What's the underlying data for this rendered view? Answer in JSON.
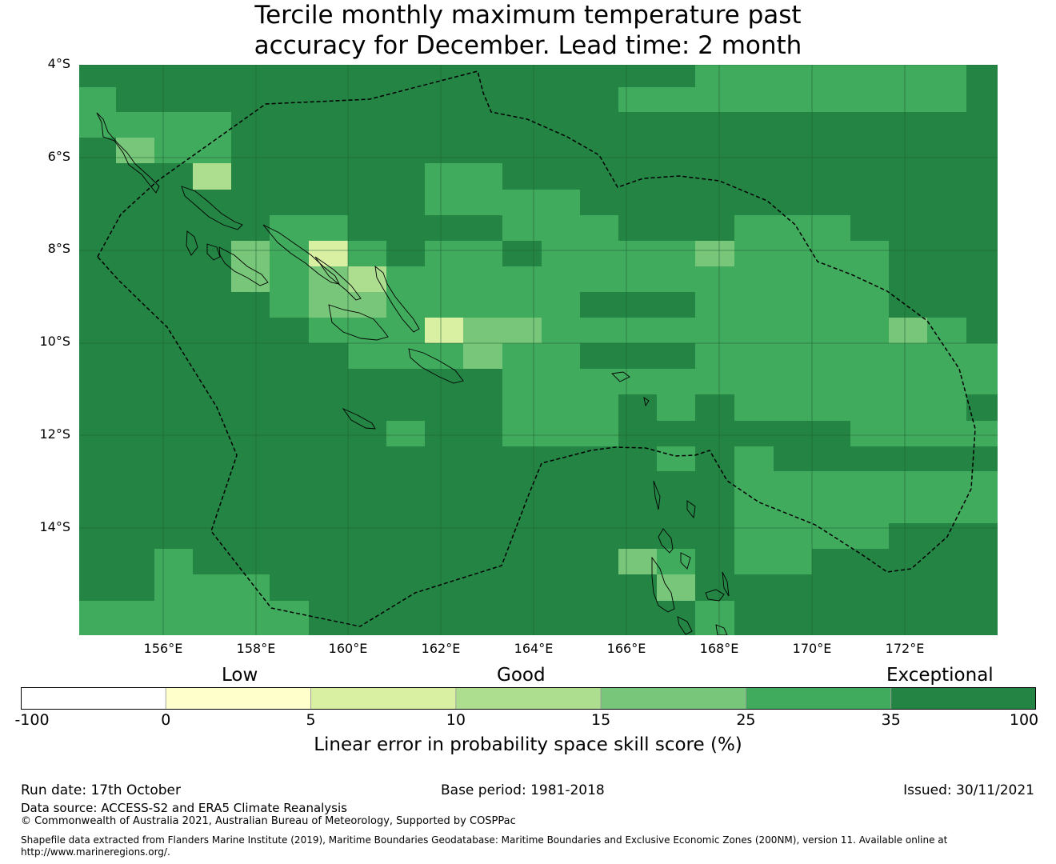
{
  "title_line1": "Tercile monthly maximum temperature past",
  "title_line2": "accuracy for December. Lead time: 2 month",
  "lat_labels": [
    "4°S",
    "6°S",
    "8°S",
    "10°S",
    "12°S",
    "14°S"
  ],
  "lon_labels": [
    "156°E",
    "158°E",
    "160°E",
    "162°E",
    "164°E",
    "166°E",
    "168°E",
    "170°E",
    "172°E"
  ],
  "categories": {
    "low": "Low",
    "good": "Good",
    "exceptional": "Exceptional"
  },
  "colorbar": {
    "ticks": [
      "-100",
      "0",
      "5",
      "10",
      "15",
      "25",
      "35",
      "100"
    ],
    "colors": [
      "#ffffff",
      "#ffffcc",
      "#d9f0a3",
      "#addd8e",
      "#78c679",
      "#41ab5d",
      "#238443"
    ],
    "label": "Linear error in probability space skill score (%)"
  },
  "footer": {
    "run_date": "Run date: 17th October",
    "base_period": "Base period: 1981-2018",
    "issued": "Issued: 30/11/2021",
    "data_source": "Data source: ACCESS-S2 and ERA5 Climate Reanalysis",
    "copyright": "© Commonwealth of Australia 2021, Australian Bureau of Meteorology, Supported by COSPPac",
    "shapefile_line1": "Shapefile data extracted from Flanders Marine Institute (2019), Maritime Boundaries Geodatabase: Maritime Boundaries and Exclusive Economic Zones (200NM), version 11. Available online at",
    "shapefile_line2": "http://www.marineregions.org/."
  }
}
